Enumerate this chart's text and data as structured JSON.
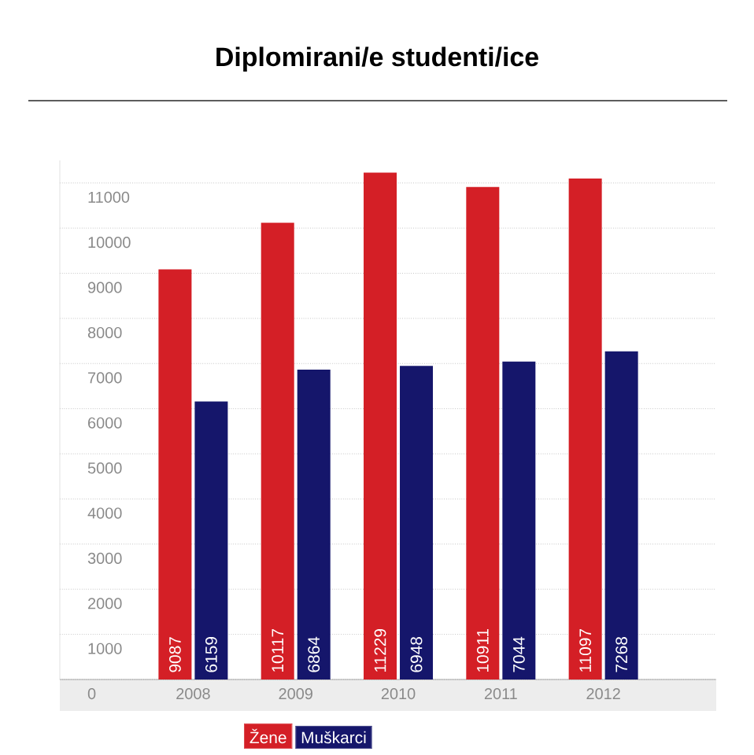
{
  "chart_data": {
    "type": "bar",
    "title": "Diplomirani/e studenti/ice",
    "categories": [
      "2008",
      "2009",
      "2010",
      "2011",
      "2012"
    ],
    "series": [
      {
        "name": "Žene",
        "color": "#d41f26",
        "values": [
          9087,
          10117,
          11229,
          10911,
          11097
        ]
      },
      {
        "name": "Muškarci",
        "color": "#15166b",
        "values": [
          6159,
          6864,
          6948,
          7044,
          7268
        ]
      }
    ],
    "ylim": [
      0,
      11500
    ],
    "yticks": [
      0,
      1000,
      2000,
      3000,
      4000,
      5000,
      6000,
      7000,
      8000,
      9000,
      10000,
      11000
    ],
    "grid": "y",
    "legend": "bottom",
    "data_labels": true
  }
}
